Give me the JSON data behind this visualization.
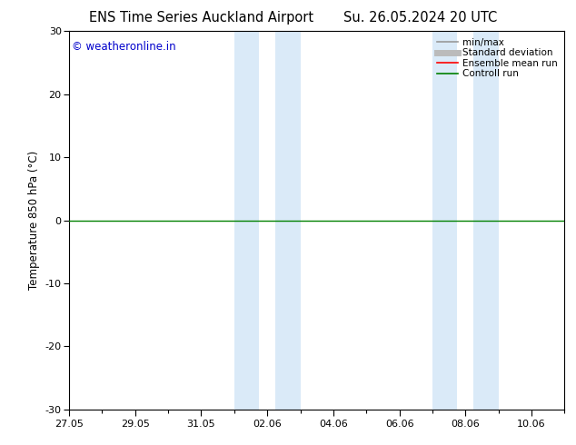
{
  "title_left": "ENS Time Series Auckland Airport",
  "title_right": "Su. 26.05.2024 20 UTC",
  "ylabel": "Temperature 850 hPa (°C)",
  "ylim": [
    -30,
    30
  ],
  "yticks": [
    -30,
    -20,
    -10,
    0,
    10,
    20,
    30
  ],
  "xtick_labels": [
    "27.05",
    "29.05",
    "31.05",
    "02.06",
    "04.06",
    "06.06",
    "08.06",
    "10.06"
  ],
  "xtick_positions": [
    0,
    2,
    4,
    6,
    8,
    10,
    12,
    14
  ],
  "xlim": [
    0,
    15
  ],
  "shaded_regions": [
    {
      "start": 5.0,
      "end": 5.75
    },
    {
      "start": 6.25,
      "end": 7.0
    },
    {
      "start": 11.0,
      "end": 11.75
    },
    {
      "start": 12.25,
      "end": 13.0
    }
  ],
  "zero_line_color": "#008000",
  "zero_line_lw": 1.0,
  "watermark": "© weatheronline.in",
  "watermark_color": "#0000cc",
  "legend_items": [
    {
      "label": "min/max",
      "color": "#999999",
      "lw": 1.2
    },
    {
      "label": "Standard deviation",
      "color": "#bbbbbb",
      "lw": 5
    },
    {
      "label": "Ensemble mean run",
      "color": "#ff0000",
      "lw": 1.2
    },
    {
      "label": "Controll run",
      "color": "#008000",
      "lw": 1.2
    }
  ],
  "shaded_color": "#daeaf8",
  "bg_color": "#ffffff",
  "spine_color": "#000000",
  "title_fontsize": 10.5,
  "label_fontsize": 8.5,
  "tick_fontsize": 8,
  "watermark_fontsize": 8.5,
  "legend_fontsize": 7.5
}
